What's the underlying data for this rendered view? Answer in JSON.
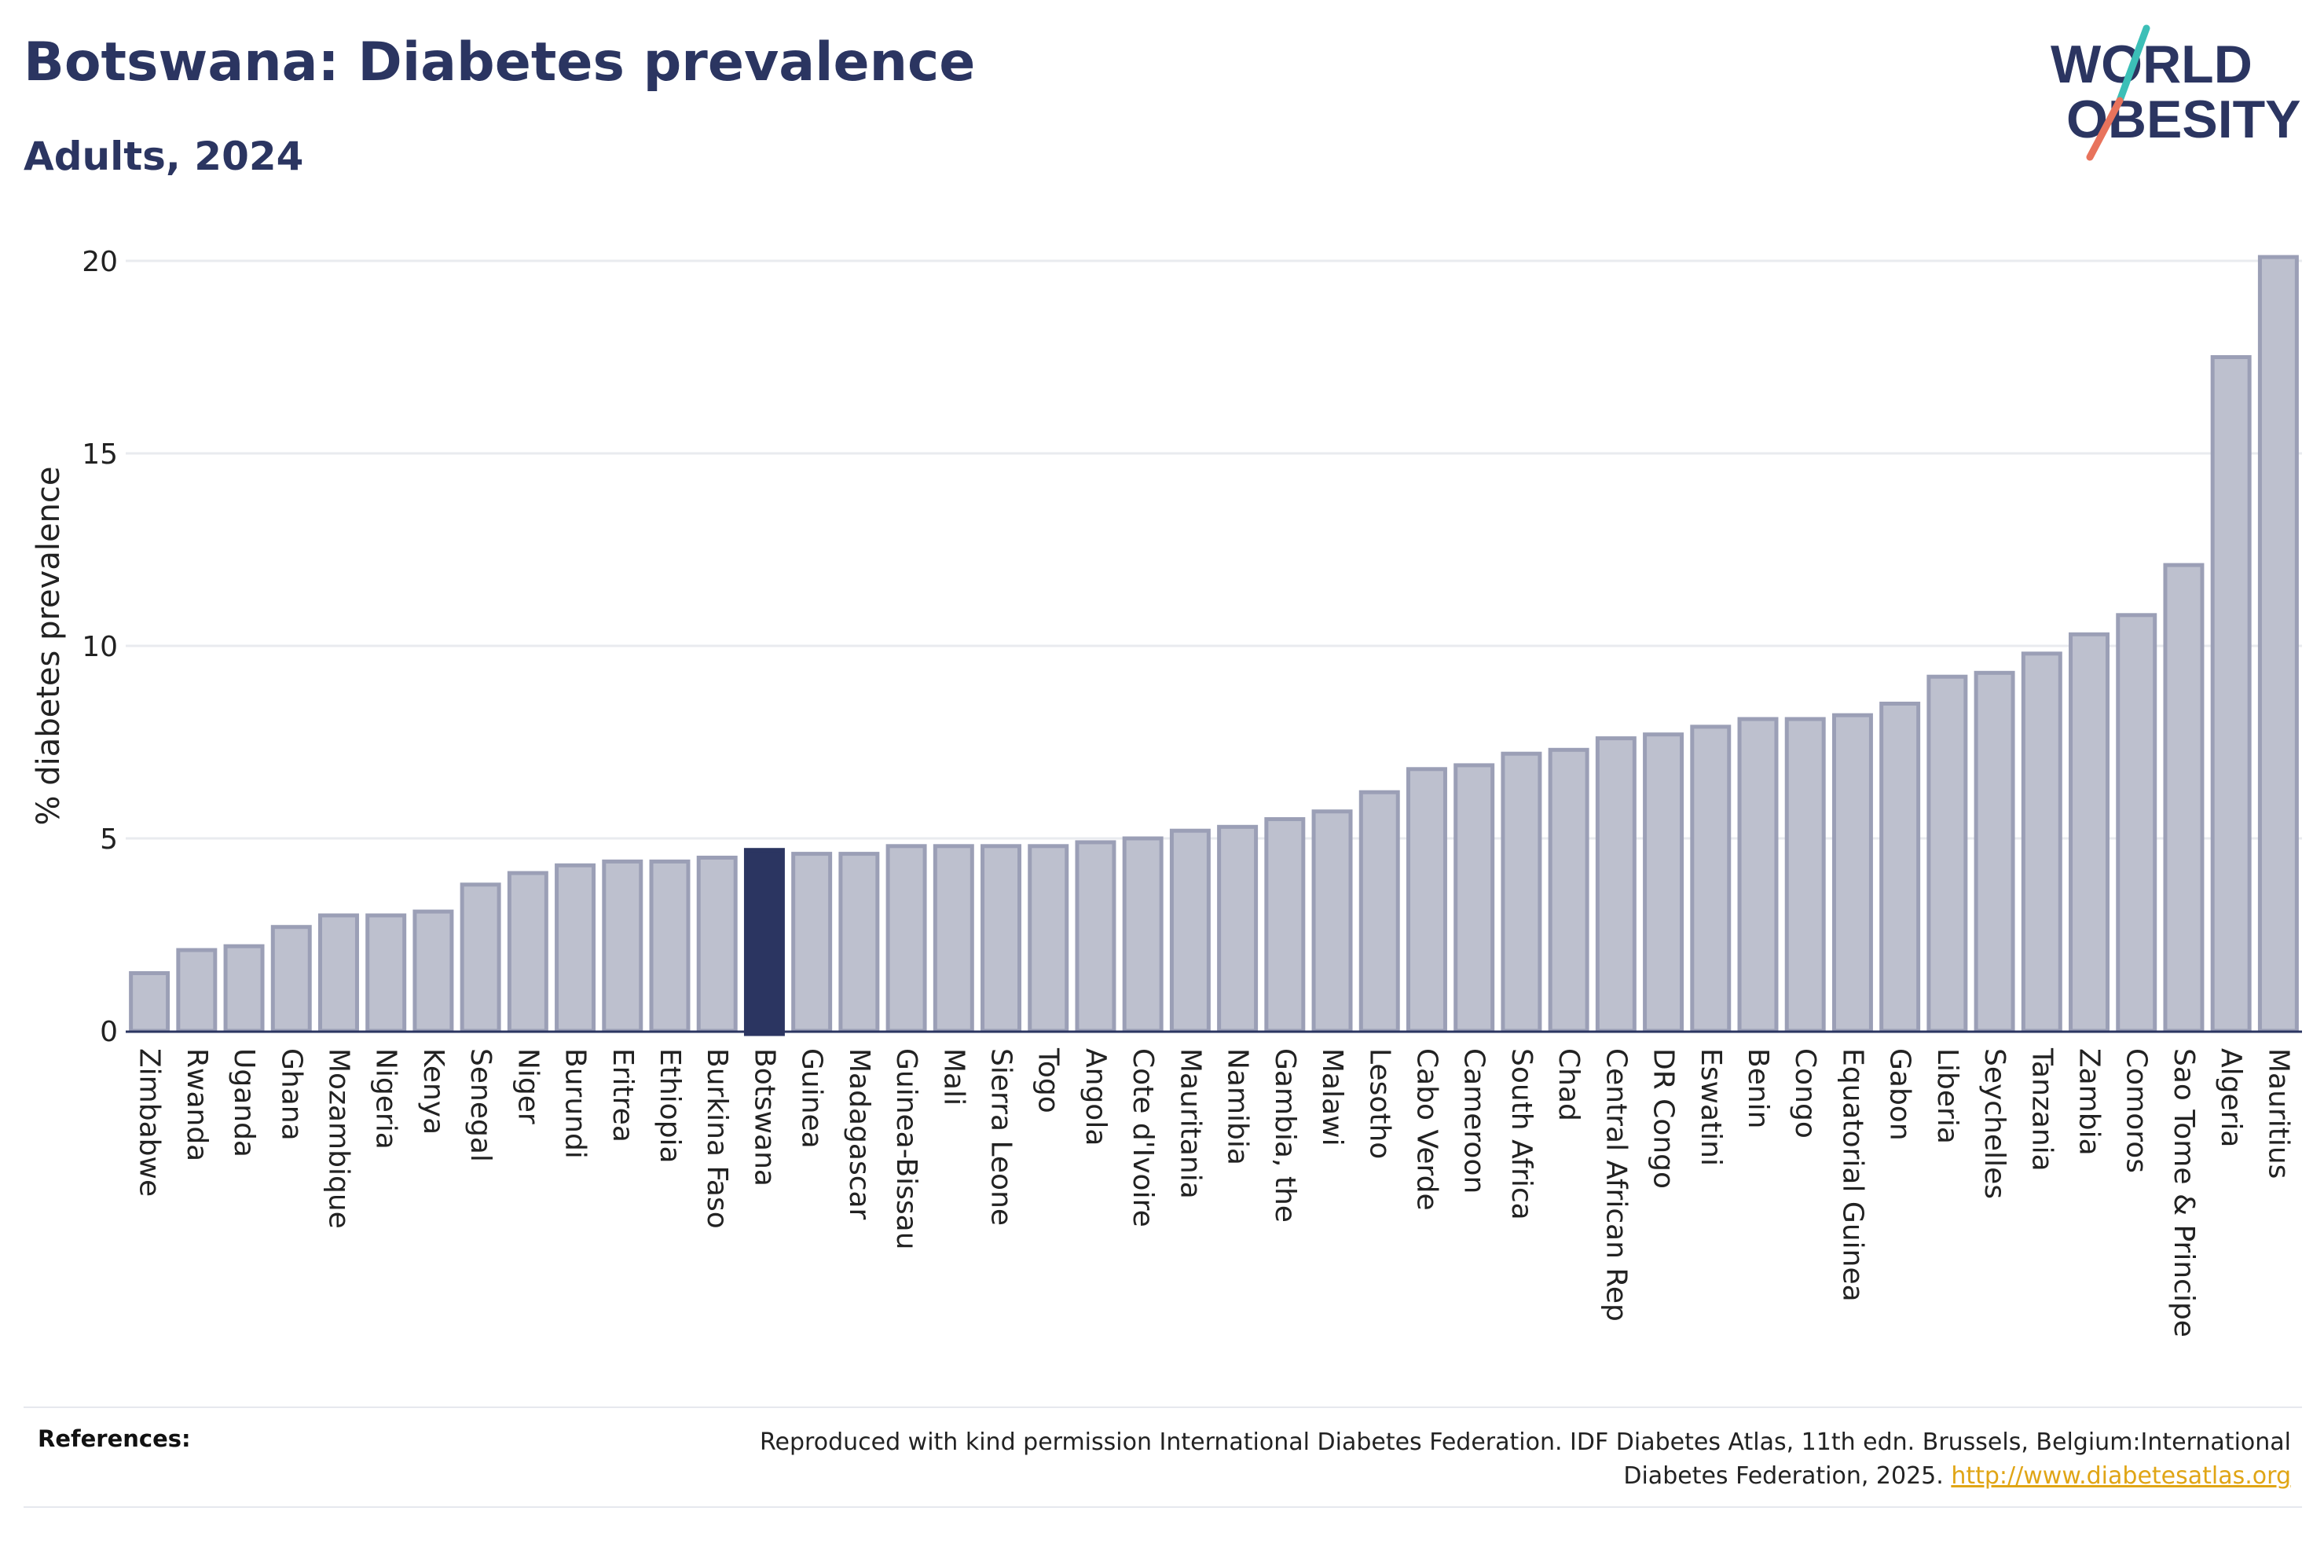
{
  "title": "Botswana: Diabetes prevalence",
  "subtitle": "Adults, 2024",
  "logo": {
    "line1": "WORLD",
    "line2": "OBESITY"
  },
  "references": {
    "label": "References:",
    "text": "Reproduced with kind permission International Diabetes Federation. IDF Diabetes Atlas, 11th edn. Brussels, Belgium:International Diabetes Federation, 2025.",
    "link": "http://www.diabetesatlas.org"
  },
  "colors": {
    "bar": "#bdc0ce",
    "bar_border": "#9b9fb6",
    "highlight": "#2b3561",
    "text": "#2b3561",
    "grid": "#e9ebef",
    "axis": "#2b3561",
    "logo_teal": "#3cbfb7",
    "logo_coral": "#e8735c"
  },
  "chart_data": {
    "type": "bar",
    "ylabel": "% diabetes prevalence",
    "xlabel": "",
    "ylim": [
      0,
      20
    ],
    "yticks": [
      0,
      5,
      10,
      15,
      20
    ],
    "grid": true,
    "highlight": "Botswana",
    "categories": [
      "Zimbabwe",
      "Rwanda",
      "Uganda",
      "Ghana",
      "Mozambique",
      "Nigeria",
      "Kenya",
      "Senegal",
      "Niger",
      "Burundi",
      "Eritrea",
      "Ethiopia",
      "Burkina Faso",
      "Botswana",
      "Guinea",
      "Madagascar",
      "Guinea-Bissau",
      "Mali",
      "Sierra Leone",
      "Togo",
      "Angola",
      "Cote d'Ivoire",
      "Mauritania",
      "Namibia",
      "Gambia, the",
      "Malawi",
      "Lesotho",
      "Cabo Verde",
      "Cameroon",
      "South Africa",
      "Chad",
      "Central African Rep",
      "DR Congo",
      "Eswatini",
      "Benin",
      "Congo",
      "Equatorial Guinea",
      "Gabon",
      "Liberia",
      "Seychelles",
      "Tanzania",
      "Zambia",
      "Comoros",
      "Sao Tome & Principe",
      "Algeria",
      "Mauritius"
    ],
    "values": [
      1.5,
      2.1,
      2.2,
      2.7,
      3.0,
      3.0,
      3.1,
      3.8,
      4.1,
      4.3,
      4.4,
      4.4,
      4.5,
      4.7,
      4.6,
      4.6,
      4.8,
      4.8,
      4.8,
      4.8,
      4.9,
      5.0,
      5.2,
      5.3,
      5.5,
      5.7,
      6.2,
      6.8,
      6.9,
      7.2,
      7.3,
      7.6,
      7.7,
      7.9,
      8.1,
      8.1,
      8.2,
      8.5,
      9.2,
      9.3,
      9.8,
      10.3,
      10.8,
      12.1,
      17.5,
      20.1
    ]
  }
}
